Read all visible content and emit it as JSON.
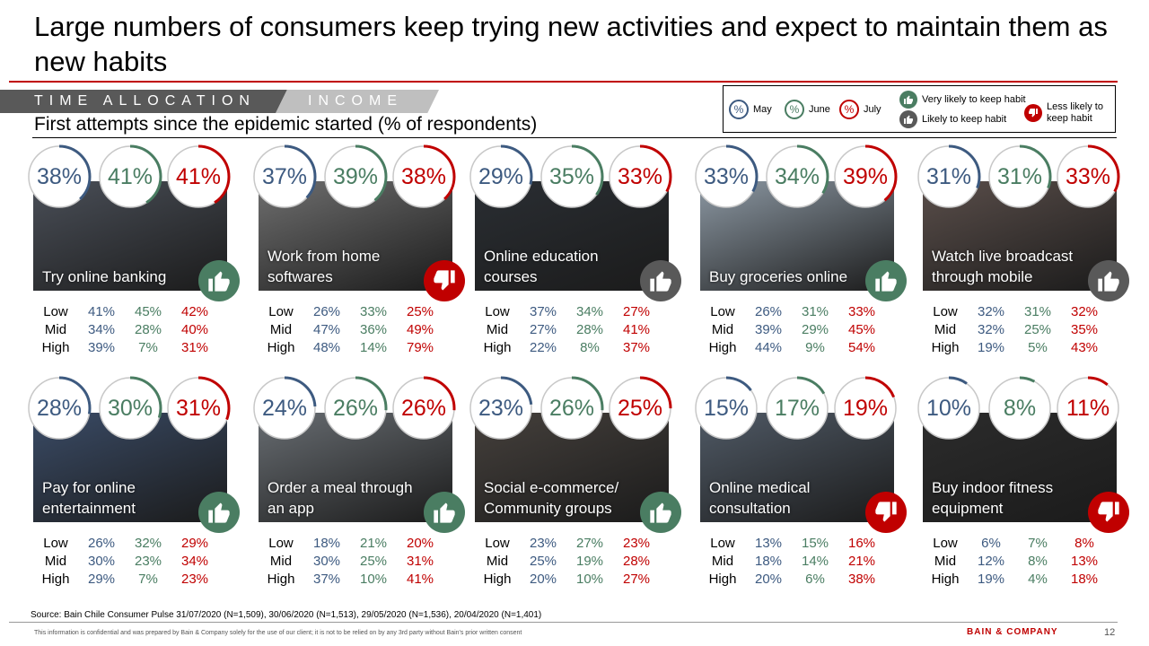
{
  "title": "Large numbers of consumers keep trying new activities and expect to maintain them as new habits",
  "tabs": {
    "time": "TIME ALLOCATION",
    "income": "INCOME"
  },
  "subtitle": "First attempts since the epidemic started (% of respondents)",
  "legend": {
    "symbol": "%",
    "may": "May",
    "june": "June",
    "july": "July",
    "very_likely": "Very likely to keep habit",
    "likely": "Likely to keep habit",
    "less_likely": "Less likely to keep habit"
  },
  "row_labels": [
    "Low",
    "Mid",
    "High"
  ],
  "colors": {
    "may": "#3d5a80",
    "june": "#4a7d62",
    "july": "#c00000",
    "very_likely": "#4a7d62",
    "likely": "#595959",
    "less_likely": "#c00000"
  },
  "cards": [
    {
      "label": "Try online banking",
      "headline": [
        "38%",
        "41%",
        "41%"
      ],
      "progress": [
        38,
        41,
        41
      ],
      "habit": "very_likely",
      "photo": "#4a4f58",
      "rows": [
        [
          "41%",
          "45%",
          "42%"
        ],
        [
          "34%",
          "28%",
          "40%"
        ],
        [
          "39%",
          "7%",
          "31%"
        ]
      ]
    },
    {
      "label": "Work from home softwares",
      "headline": [
        "37%",
        "39%",
        "38%"
      ],
      "progress": [
        37,
        39,
        38
      ],
      "habit": "less_likely",
      "photo": "#6f6f6f",
      "rows": [
        [
          "26%",
          "33%",
          "25%"
        ],
        [
          "47%",
          "36%",
          "49%"
        ],
        [
          "48%",
          "14%",
          "79%"
        ]
      ]
    },
    {
      "label": "Online education courses",
      "headline": [
        "29%",
        "35%",
        "33%"
      ],
      "progress": [
        29,
        35,
        33
      ],
      "habit": "likely",
      "photo": "#2a2e33",
      "rows": [
        [
          "37%",
          "34%",
          "27%"
        ],
        [
          "27%",
          "28%",
          "41%"
        ],
        [
          "22%",
          "8%",
          "37%"
        ]
      ]
    },
    {
      "label": "Buy groceries online",
      "headline": [
        "33%",
        "34%",
        "39%"
      ],
      "progress": [
        33,
        34,
        39
      ],
      "habit": "very_likely",
      "photo": "#8c98a3",
      "rows": [
        [
          "26%",
          "31%",
          "33%"
        ],
        [
          "39%",
          "29%",
          "45%"
        ],
        [
          "44%",
          "9%",
          "54%"
        ]
      ]
    },
    {
      "label": "Watch live broadcast through mobile",
      "headline": [
        "31%",
        "31%",
        "33%"
      ],
      "progress": [
        31,
        31,
        33
      ],
      "habit": "likely",
      "photo": "#5a4e4a",
      "rows": [
        [
          "32%",
          "31%",
          "32%"
        ],
        [
          "32%",
          "25%",
          "35%"
        ],
        [
          "19%",
          "5%",
          "43%"
        ]
      ]
    },
    {
      "label": "Pay for online entertainment",
      "headline": [
        "28%",
        "30%",
        "31%"
      ],
      "progress": [
        28,
        30,
        31
      ],
      "habit": "very_likely",
      "photo": "#3a4b66",
      "rows": [
        [
          "26%",
          "32%",
          "29%"
        ],
        [
          "30%",
          "23%",
          "34%"
        ],
        [
          "29%",
          "7%",
          "23%"
        ]
      ]
    },
    {
      "label": "Order a meal through an app",
      "headline": [
        "24%",
        "26%",
        "26%"
      ],
      "progress": [
        24,
        26,
        26
      ],
      "habit": "very_likely",
      "photo": "#686d72",
      "rows": [
        [
          "18%",
          "21%",
          "20%"
        ],
        [
          "30%",
          "25%",
          "31%"
        ],
        [
          "37%",
          "10%",
          "41%"
        ]
      ]
    },
    {
      "label": "Social e-commerce/ Community groups",
      "headline": [
        "23%",
        "26%",
        "25%"
      ],
      "progress": [
        23,
        26,
        25
      ],
      "habit": "very_likely",
      "photo": "#45403c",
      "rows": [
        [
          "23%",
          "27%",
          "23%"
        ],
        [
          "25%",
          "19%",
          "28%"
        ],
        [
          "20%",
          "10%",
          "27%"
        ]
      ]
    },
    {
      "label": "Online medical consultation",
      "headline": [
        "15%",
        "17%",
        "19%"
      ],
      "progress": [
        15,
        17,
        19
      ],
      "habit": "less_likely",
      "photo": "#505a66",
      "rows": [
        [
          "13%",
          "15%",
          "16%"
        ],
        [
          "18%",
          "14%",
          "21%"
        ],
        [
          "20%",
          "6%",
          "38%"
        ]
      ]
    },
    {
      "label": "Buy indoor fitness equipment",
      "headline": [
        "10%",
        "8%",
        "11%"
      ],
      "progress": [
        10,
        8,
        11
      ],
      "habit": "less_likely",
      "photo": "#2c2c2c",
      "rows": [
        [
          "6%",
          "7%",
          "8%"
        ],
        [
          "12%",
          "8%",
          "13%"
        ],
        [
          "19%",
          "4%",
          "18%"
        ]
      ]
    }
  ],
  "footer": {
    "source": "Source: Bain Chile Consumer Pulse 31/07/2020 (N=1,509), 30/06/2020 (N=1,513), 29/05/2020 (N=1,536), 20/04/2020 (N=1,401)",
    "confidential": "This information is confidential and was prepared by Bain & Company solely for the use of our client; it is not to be relied on by any 3rd party without Bain's prior written consent",
    "brand": "BAIN & COMPANY",
    "page": "12"
  }
}
